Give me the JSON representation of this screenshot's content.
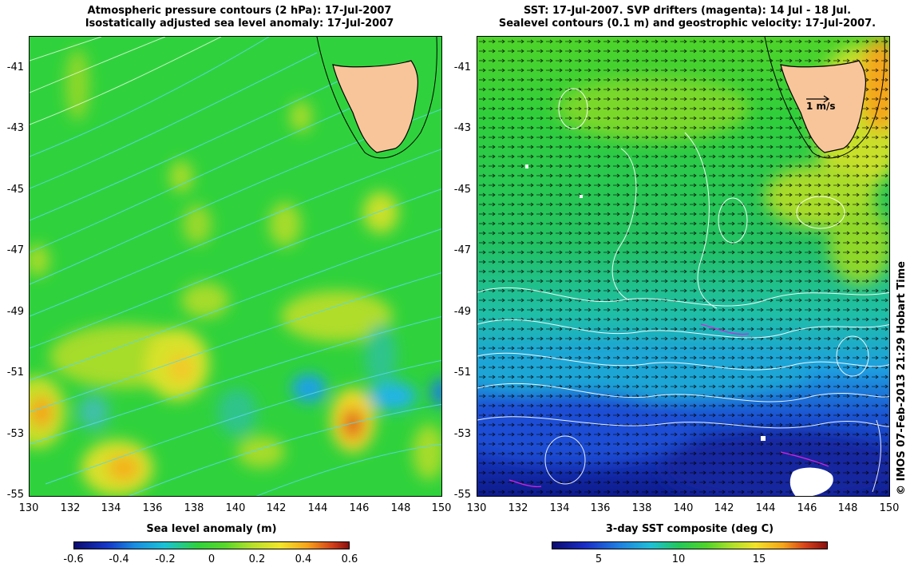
{
  "left_panel": {
    "title_line1": "Atmospheric pressure contours (2 hPa): 17-Jul-2007",
    "title_line2": "Isostatically adjusted sea level anomaly: 17-Jul-2007",
    "y_ticks": [
      "-41",
      "-43",
      "-45",
      "-47",
      "-49",
      "-51",
      "-53",
      "-55"
    ],
    "x_ticks": [
      "130",
      "132",
      "134",
      "136",
      "138",
      "140",
      "142",
      "144",
      "146",
      "148",
      "150"
    ],
    "colorbar_title": "Sea level anomaly (m)",
    "colorbar_ticks": [
      "-0.6",
      "-0.4",
      "-0.2",
      "0",
      "0.2",
      "0.4",
      "0.6"
    ]
  },
  "right_panel": {
    "title_line1": "SST: 17-Jul-2007. SVP drifters (magenta): 14 Jul - 18 Jul.",
    "title_line2": "Sealevel contours (0.1 m) and geostrophic velocity: 17-Jul-2007.",
    "y_ticks": [
      "-41",
      "-43",
      "-45",
      "-47",
      "-49",
      "-51",
      "-53",
      "-55"
    ],
    "x_ticks": [
      "130",
      "132",
      "134",
      "136",
      "138",
      "140",
      "142",
      "144",
      "146",
      "148",
      "150"
    ],
    "velocity_scale_label": "1 m/s",
    "colorbar_title": "3-day SST composite (deg C)",
    "colorbar_ticks": [
      "5",
      "10",
      "15"
    ]
  },
  "copyright": "© IMOS 07-Feb-2013 21:29 Hobart Time",
  "colors": {
    "land": "#f8c59a",
    "sla_background": "#2fd23c",
    "pressure_contours": "#5ad8e8",
    "sea_level_contours": "#ffffff",
    "drifters": "#e020e0"
  }
}
